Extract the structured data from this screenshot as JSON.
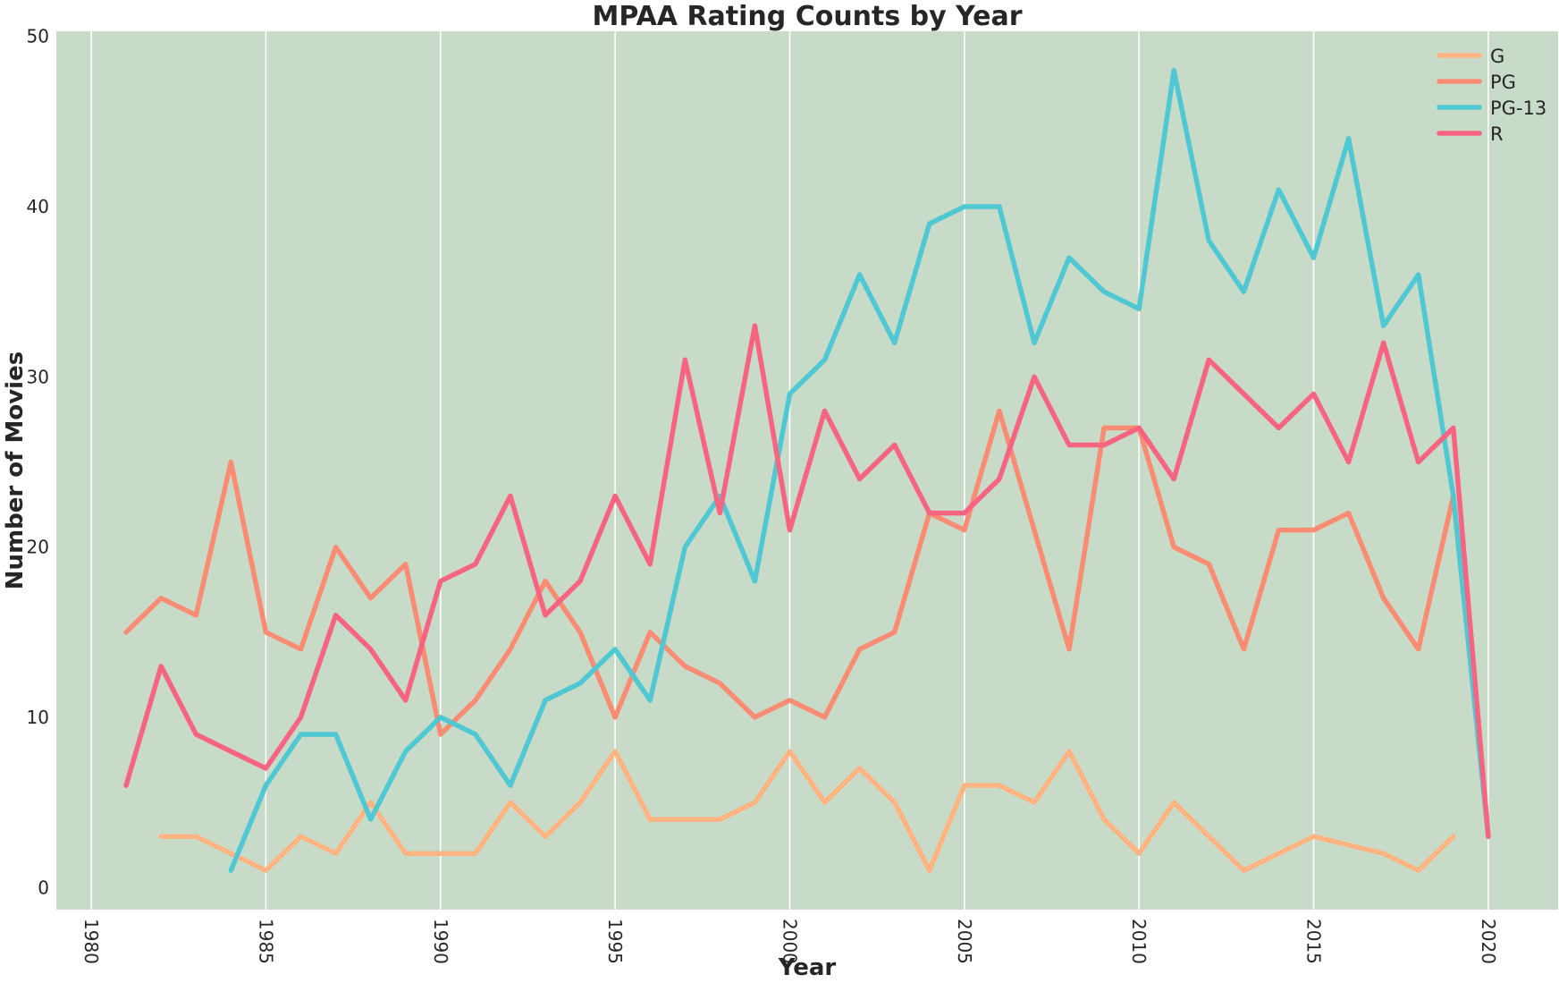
{
  "chart_data": {
    "type": "line",
    "title": "MPAA Rating Counts by Year",
    "xlabel": "Year",
    "ylabel": "Number of Movies",
    "xlim": [
      1979,
      2022
    ],
    "ylim": [
      -1.3,
      50.3
    ],
    "xticks": [
      1980,
      1985,
      1990,
      1995,
      2000,
      2005,
      2010,
      2015,
      2020
    ],
    "yticks": [
      0,
      10,
      20,
      30,
      40,
      50
    ],
    "grid": "vertical",
    "legend_position": "top-right",
    "background_color": "#c8dbc8",
    "series": [
      {
        "name": "G",
        "color": "#ffb482",
        "x": [
          1982,
          1983,
          1984,
          1985,
          1986,
          1987,
          1988,
          1989,
          1990,
          1991,
          1992,
          1993,
          1994,
          1995,
          1996,
          1997,
          1998,
          1999,
          2000,
          2001,
          2002,
          2003,
          2004,
          2005,
          2006,
          2007,
          2008,
          2009,
          2010,
          2011,
          2012,
          2013,
          2014,
          2015,
          2016,
          2017,
          2018,
          2019
        ],
        "y": [
          3,
          3,
          2,
          1,
          3,
          2,
          5,
          2,
          2,
          2,
          5,
          3,
          5,
          8,
          4,
          4,
          4,
          5,
          8,
          5,
          7,
          5,
          1,
          6,
          6,
          5,
          8,
          4,
          2,
          5,
          3,
          1,
          2,
          3,
          2.5,
          2,
          1,
          3
        ]
      },
      {
        "name": "PG",
        "color": "#fa8c73",
        "x": [
          1981,
          1982,
          1983,
          1984,
          1985,
          1986,
          1987,
          1988,
          1989,
          1990,
          1991,
          1992,
          1993,
          1994,
          1995,
          1996,
          1997,
          1998,
          1999,
          2000,
          2001,
          2002,
          2003,
          2004,
          2005,
          2006,
          2007,
          2008,
          2009,
          2010,
          2011,
          2012,
          2013,
          2014,
          2015,
          2016,
          2017,
          2018,
          2019,
          2020
        ],
        "y": [
          15,
          17,
          16,
          25,
          15,
          14,
          20,
          17,
          19,
          9,
          11,
          14,
          18,
          15,
          10,
          15,
          13,
          12,
          10,
          11,
          10,
          14,
          15,
          22,
          21,
          28,
          21,
          14,
          27,
          27,
          20,
          19,
          14,
          21,
          21,
          22,
          17,
          14,
          23,
          3
        ]
      },
      {
        "name": "PG-13",
        "color": "#4fc8d3",
        "x": [
          1984,
          1985,
          1986,
          1987,
          1988,
          1989,
          1990,
          1991,
          1992,
          1993,
          1994,
          1995,
          1996,
          1997,
          1998,
          1999,
          2000,
          2001,
          2002,
          2003,
          2004,
          2005,
          2006,
          2007,
          2008,
          2009,
          2010,
          2011,
          2012,
          2013,
          2014,
          2015,
          2016,
          2017,
          2018,
          2019,
          2020
        ],
        "y": [
          1,
          6,
          9,
          9,
          4,
          8,
          10,
          9,
          6,
          11,
          12,
          14,
          11,
          20,
          23,
          18,
          29,
          31,
          36,
          32,
          39,
          40,
          40,
          32,
          37,
          35,
          34,
          48,
          38,
          35,
          41,
          37,
          44,
          33,
          36,
          23,
          3
        ]
      },
      {
        "name": "R",
        "color": "#f76482",
        "x": [
          1981,
          1982,
          1983,
          1984,
          1985,
          1986,
          1987,
          1988,
          1989,
          1990,
          1991,
          1992,
          1993,
          1994,
          1995,
          1996,
          1997,
          1998,
          1999,
          2000,
          2001,
          2002,
          2003,
          2004,
          2005,
          2006,
          2007,
          2008,
          2009,
          2010,
          2011,
          2012,
          2013,
          2014,
          2015,
          2016,
          2017,
          2018,
          2019,
          2020
        ],
        "y": [
          6,
          13,
          9,
          8,
          7,
          10,
          16,
          14,
          11,
          18,
          19,
          23,
          16,
          18,
          23,
          19,
          31,
          22,
          33,
          21,
          28,
          24,
          26,
          22,
          22,
          24,
          30,
          26,
          26,
          27,
          24,
          31,
          29,
          27,
          29,
          25,
          32,
          25,
          27,
          3
        ]
      }
    ]
  }
}
